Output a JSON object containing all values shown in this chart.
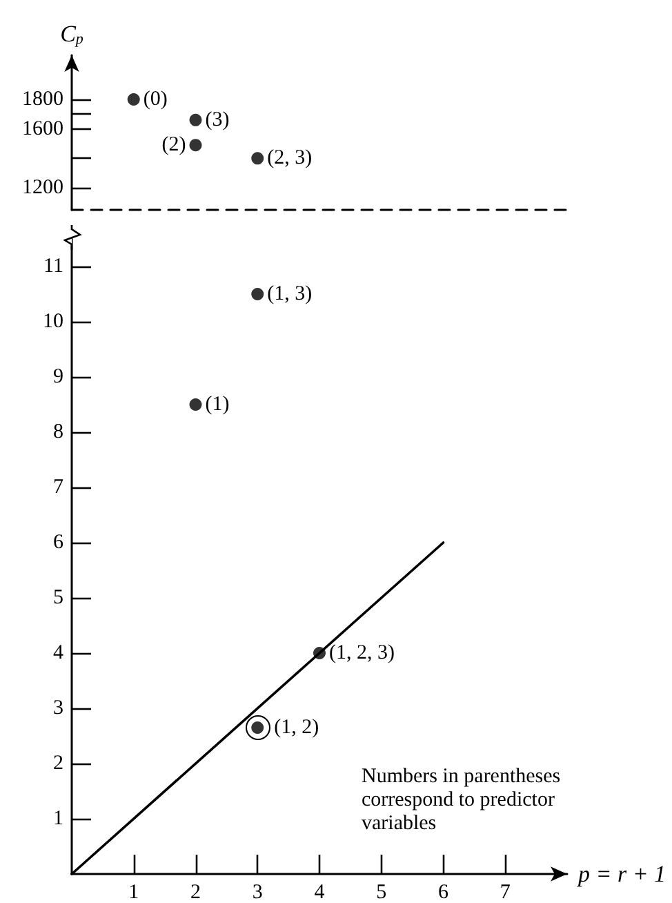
{
  "chart_data": [
    {
      "type": "scatter",
      "ylabel": "C$_{p}$",
      "xlim": [
        0,
        8
      ],
      "ylim": [
        1050,
        2100
      ],
      "yticks": [
        1200,
        {
          "value": 1400,
          "label": null
        },
        1600,
        {
          "value": 1700,
          "label": null
        },
        1800
      ],
      "tick_labels": "y",
      "grid": false,
      "marker": "circle",
      "annotations": [
        {
          "text": "(0)",
          "x": 1,
          "y": 1800
        },
        {
          "text": "(3)",
          "x": 2,
          "y": 1660
        },
        {
          "text": "(2)",
          "x": 2,
          "y": 1490
        },
        {
          "text": "(2, 3)",
          "x": 3,
          "y": 1400
        }
      ],
      "series": [
        {
          "color": "#000000",
          "x": [
            1,
            2,
            2,
            3
          ],
          "values": [
            1800,
            1660,
            1490,
            1400
          ]
        }
      ]
    },
    {
      "type": "scatter",
      "xlabel": "p = r + 1",
      "xlim": [
        0,
        8
      ],
      "ylim": [
        0,
        11.5
      ],
      "xticks": [
        1,
        2,
        3,
        4,
        5,
        6,
        7
      ],
      "yticks": [
        1,
        2,
        3,
        4,
        5,
        6,
        7,
        8,
        9,
        10,
        11
      ],
      "grid": false,
      "marker": "circle",
      "annotations": [
        {
          "text": "(1)",
          "x": 2,
          "y": 8.5
        },
        {
          "text": "(1, 3)",
          "x": 3,
          "y": 10.5
        },
        {
          "text": "(1, 2)",
          "x": 3,
          "y": 2.65
        },
        {
          "text": "(1, 2, 3)",
          "x": 4,
          "y": 4
        },
        "Numbers in parentheses correspond to predictor variables"
      ],
      "series": [
        {
          "color": "#000000",
          "x": [
            2,
            3,
            3,
            4
          ],
          "values": [
            8.5,
            10.5,
            2.65,
            4
          ]
        },
        {
          "type": "line",
          "color": "#000000",
          "x": [
            0,
            6
          ],
          "values": [
            0,
            6
          ],
          "marker": "none"
        }
      ]
    }
  ]
}
